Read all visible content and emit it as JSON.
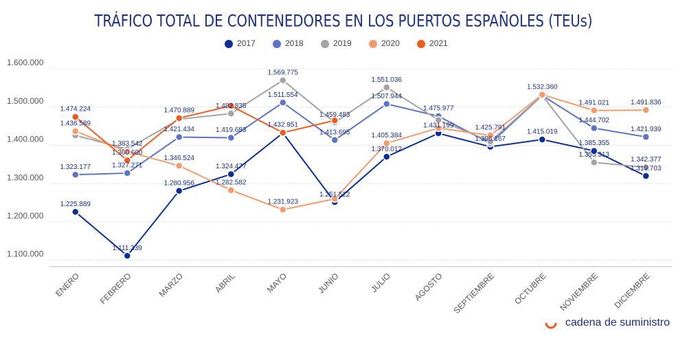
{
  "chart_data": {
    "type": "line",
    "title": "TRÁFICO TOTAL DE CONTENEDORES EN LOS PUERTOS ESPAÑOLES (TEUs)",
    "branding": "cadena de suministro",
    "categories": [
      "ENERO",
      "FEBRERO",
      "MARZO",
      "ABRIL",
      "MAYO",
      "JUNIO",
      "JULIO",
      "AGOSTO",
      "SEPTIEMBRE",
      "OCTUBRE",
      "NOVIEMBRE",
      "DICIEMBRE"
    ],
    "series": [
      {
        "name": "2017",
        "color": "#0b2e9c",
        "values": [
          1225889,
          1111339,
          1280956,
          1324477,
          1432000,
          1251522,
          1370012,
          1431199,
          1396167,
          1415019,
          1385355,
          1319703
        ],
        "value_labels": [
          "1.225.889",
          "1.111.339",
          "1.280.956",
          "1.324.477",
          null,
          "1.251.522",
          "1.370.012",
          "1.431.199",
          "1.396.167",
          "1.415.019",
          "1.385.355",
          "1.319.703"
        ]
      },
      {
        "name": "2018",
        "color": "#5b74c8",
        "values": [
          1323177,
          1327271,
          1421434,
          1419683,
          1511554,
          1413695,
          1507944,
          1475977,
          1405000,
          1530000,
          1444702,
          1421939
        ],
        "value_labels": [
          "1.323.177",
          "1.327.271",
          "1.421.434",
          "1.419.683",
          "1.511.554",
          "1.413.695",
          "1.507.944",
          "1.475.977",
          null,
          null,
          "1.444.702",
          "1.421.939"
        ]
      },
      {
        "name": "2019",
        "color": "#a3a3a3",
        "values": [
          1426000,
          1390000,
          1468000,
          1482835,
          1569775,
          1459483,
          1551036,
          1466000,
          1410000,
          1530000,
          1355313,
          1342377
        ],
        "value_labels": [
          null,
          null,
          null,
          "1.482.835",
          "1.569.775",
          "1.459.483",
          "1.551.036",
          null,
          null,
          null,
          "1.355.313",
          "1.342.377"
        ]
      },
      {
        "name": "2020",
        "color": "#f59a6b",
        "values": [
          1436589,
          1383542,
          1346524,
          1282582,
          1231923,
          1260000,
          1405384,
          1445000,
          1425791,
          1532360,
          1491021,
          1491836
        ],
        "value_labels": [
          "1.436.589",
          "1.383.542",
          "1.346.524",
          "1.282.582",
          "1.231.923",
          null,
          "1.405.384",
          null,
          "1.425.791",
          "1.532.360",
          "1.491.021",
          "1.491.836"
        ]
      },
      {
        "name": "2021",
        "color": "#f25a1c",
        "values": [
          1474224,
          1360600,
          1470889,
          1503000,
          1432951,
          1465000,
          null,
          null,
          null,
          null,
          null,
          null
        ],
        "value_labels": [
          "1.474.224",
          "1.360.600",
          "1.470.889",
          null,
          "1.432.951",
          null,
          null,
          null,
          null,
          null,
          null,
          null
        ]
      }
    ],
    "ylim": [
      1083000,
      1618000
    ],
    "yticks": [
      {
        "value": 1100000,
        "label": "1.100.000"
      },
      {
        "value": 1200000,
        "label": "1.200.000"
      },
      {
        "value": 1300000,
        "label": "1.300.000"
      },
      {
        "value": 1400000,
        "label": "1.400.000"
      },
      {
        "value": 1500000,
        "label": "1.500.000"
      },
      {
        "value": 1600000,
        "label": "1.600.000"
      }
    ],
    "grid": true
  }
}
